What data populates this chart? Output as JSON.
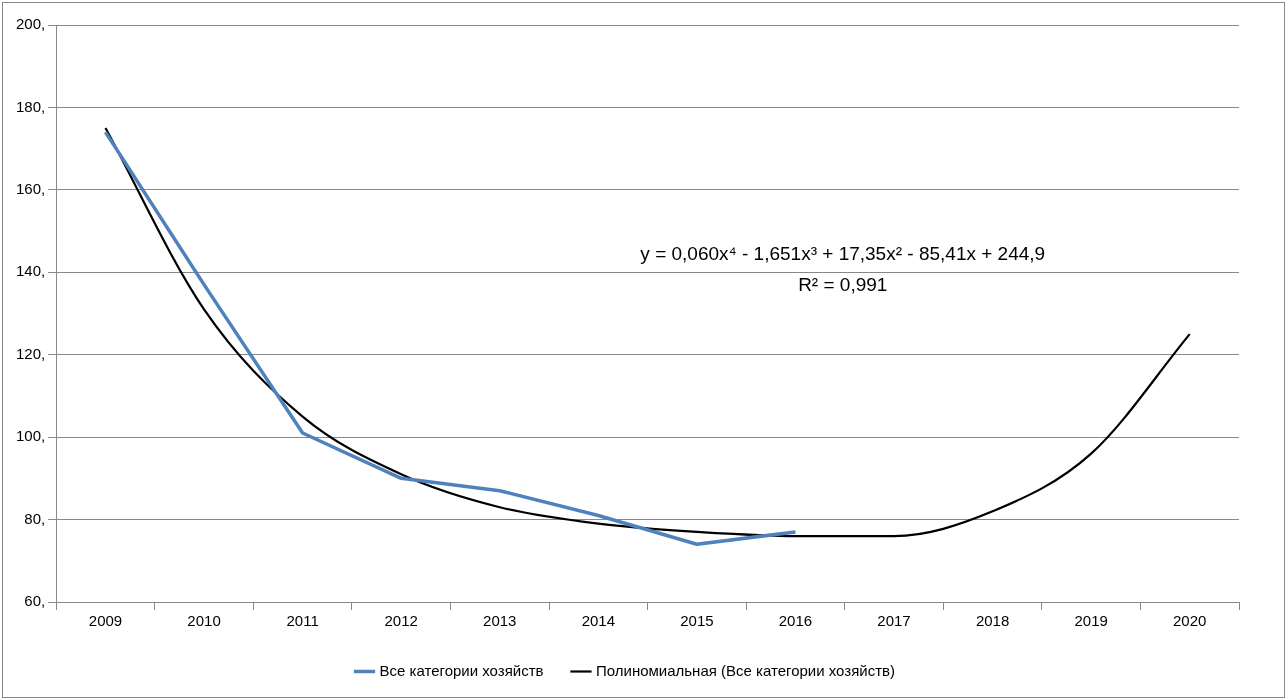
{
  "chart_data": {
    "type": "line",
    "categories": [
      "2009",
      "2010",
      "2011",
      "2012",
      "2013",
      "2014",
      "2015",
      "2016",
      "2017",
      "2018",
      "2019",
      "2020"
    ],
    "series": [
      {
        "name": "Все категории хозяйств",
        "color": "#4f81bd",
        "values": [
          174,
          137,
          101,
          90,
          87,
          81,
          74,
          77,
          null,
          null,
          null,
          null
        ]
      },
      {
        "name": "Полиномиальная (Все категории хозяйств)",
        "color": "#000000",
        "values": [
          175,
          131,
          105,
          91,
          83,
          79,
          77,
          76,
          76,
          82,
          96,
          125
        ]
      }
    ],
    "ylim": [
      60,
      200
    ],
    "yticks": [
      {
        "value": 60,
        "label": "60,"
      },
      {
        "value": 80,
        "label": "80,"
      },
      {
        "value": 100,
        "label": "100,"
      },
      {
        "value": 120,
        "label": "120,"
      },
      {
        "value": 140,
        "label": "140,"
      },
      {
        "value": 160,
        "label": "160,"
      },
      {
        "value": 180,
        "label": "180,"
      },
      {
        "value": 200,
        "label": "200,"
      }
    ],
    "grid": "y",
    "legend": "bottom",
    "marker": "none",
    "line_style": "solid",
    "annotations": [
      "y = 0,060x⁴ - 1,651x³ + 17,35x² - 85,41x + 244,9",
      "R² = 0,991"
    ]
  }
}
